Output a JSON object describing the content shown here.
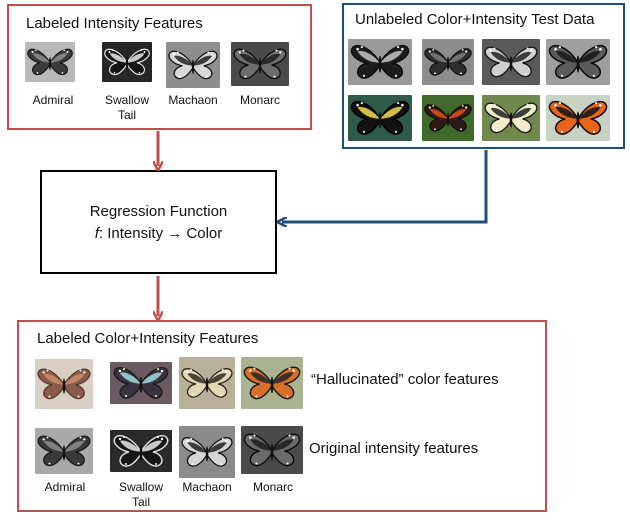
{
  "top_left_box": {
    "title": "Labeled Intensity Features",
    "labels": [
      "Admiral",
      "Swallow\nTail",
      "Machaon",
      "Monarc"
    ]
  },
  "top_right_box": {
    "title": "Unlabeled Color+Intensity Test Data"
  },
  "regression": {
    "line1": "Regression Function",
    "func_symbol": "f",
    "line2_rest": ": Intensity → Color"
  },
  "bottom_box": {
    "title": "Labeled Color+Intensity Features",
    "hallucinated_label": "“Hallucinated” color features",
    "original_label": "Original intensity features",
    "labels": [
      "Admiral",
      "Swallow\nTail",
      "Machaon",
      "Monarc"
    ]
  },
  "colors": {
    "red_border": "#c0504d",
    "blue_border": "#1f4e79",
    "red_arrow": "#c0504d",
    "blue_arrow": "#1f4e79"
  }
}
